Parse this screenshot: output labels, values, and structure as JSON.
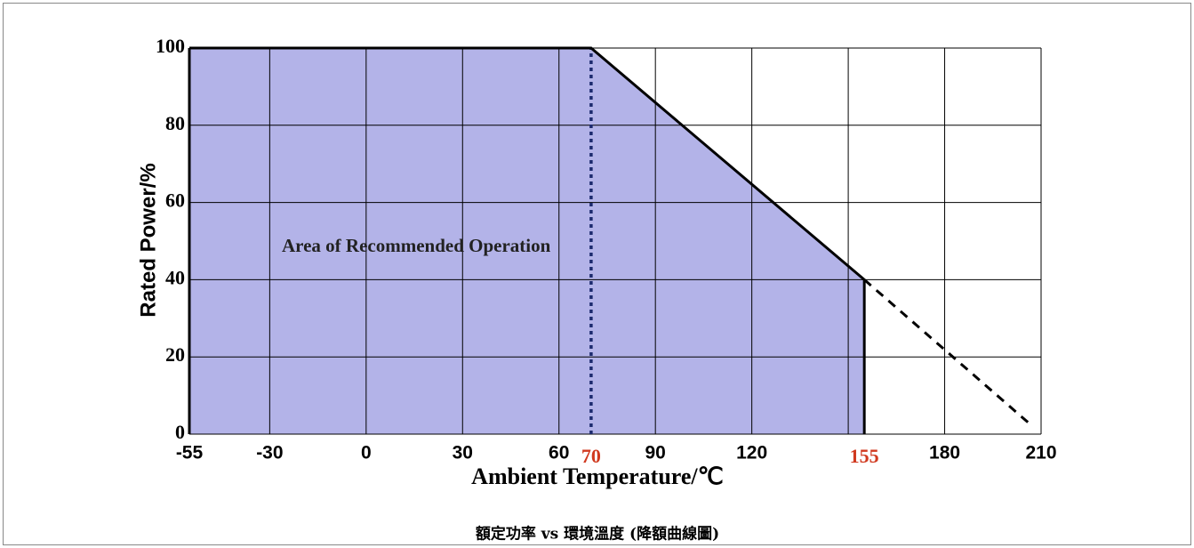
{
  "chart_data": {
    "type": "line",
    "title": "額定功率 vs 環境溫度 (降額曲線圖)",
    "x_label": "Ambient Temperature/℃",
    "y_label": "Rated Power/%",
    "annotation": "Area of Recommended Operation",
    "xlim": [
      -55,
      210
    ],
    "ylim": [
      0,
      100
    ],
    "xticks": [
      -55,
      -30,
      0,
      30,
      60,
      {
        "value": 70,
        "label": "70",
        "color": "#d0391f"
      },
      90,
      120,
      {
        "value": 155,
        "label": "155",
        "color": "#d0391f"
      },
      180,
      210
    ],
    "xgrid": [
      -55,
      -30,
      0,
      30,
      60,
      90,
      120,
      150,
      180,
      210
    ],
    "yticks": [
      0,
      20,
      40,
      60,
      80,
      100
    ],
    "grid": true,
    "series": [
      {
        "x": [
          -55,
          70,
          155
        ],
        "values": [
          100,
          100,
          40
        ],
        "color": "#000000",
        "fill": "#b3b3e8",
        "style": "solid"
      },
      {
        "x": [
          155,
          206
        ],
        "values": [
          40,
          3
        ],
        "color": "#000000",
        "style": "dashed"
      }
    ],
    "vlines": [
      {
        "x": 70,
        "values": [
          0,
          100
        ],
        "color": "#1c2a6e",
        "style": "dotted"
      },
      {
        "x": 155,
        "values": [
          0,
          40
        ],
        "color": "#000000",
        "style": "solid"
      }
    ]
  }
}
